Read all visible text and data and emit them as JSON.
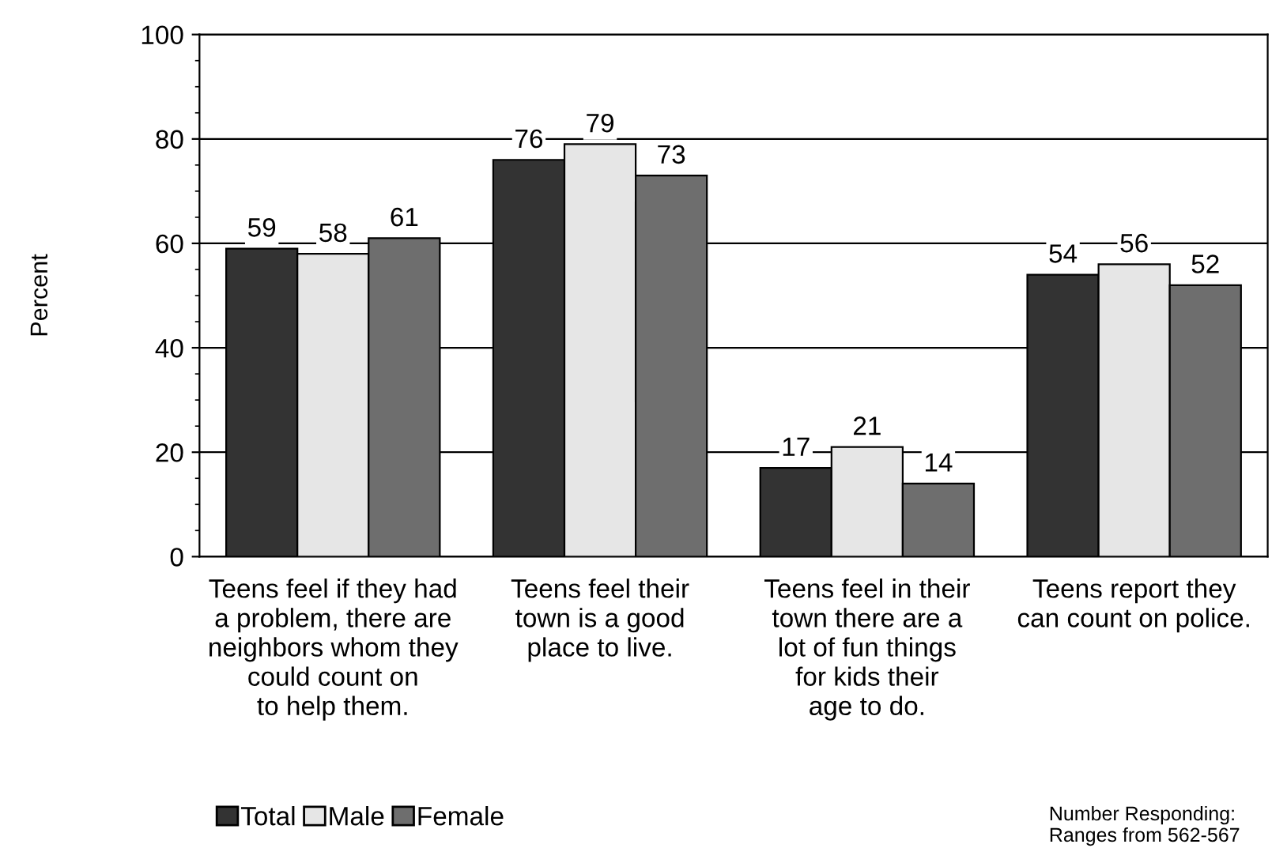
{
  "chart_data": {
    "type": "bar",
    "ylabel": "Percent",
    "categories": [
      "Teens feel if they had\na problem, there are\nneighbors whom they\ncould count on\nto help them.",
      "Teens feel their\ntown is a good\nplace to live.",
      "Teens feel in their\ntown there are a\nlot of fun things\nfor kids their\nage to do.",
      "Teens report they\ncan count on police."
    ],
    "series": [
      {
        "name": "Total",
        "color": "#333333",
        "values": [
          59,
          76,
          17,
          54
        ]
      },
      {
        "name": "Male",
        "color": "#e6e6e6",
        "values": [
          58,
          79,
          21,
          56
        ]
      },
      {
        "name": "Female",
        "color": "#6e6e6e",
        "values": [
          61,
          73,
          14,
          52
        ]
      }
    ],
    "ylim": [
      0,
      100
    ],
    "yticks": [
      0,
      20,
      40,
      60,
      80,
      100
    ],
    "grid": "y",
    "legend": "bottom left",
    "data_labels": true,
    "annotations": [
      "Number Responding:\nRanges from 562-567"
    ]
  }
}
